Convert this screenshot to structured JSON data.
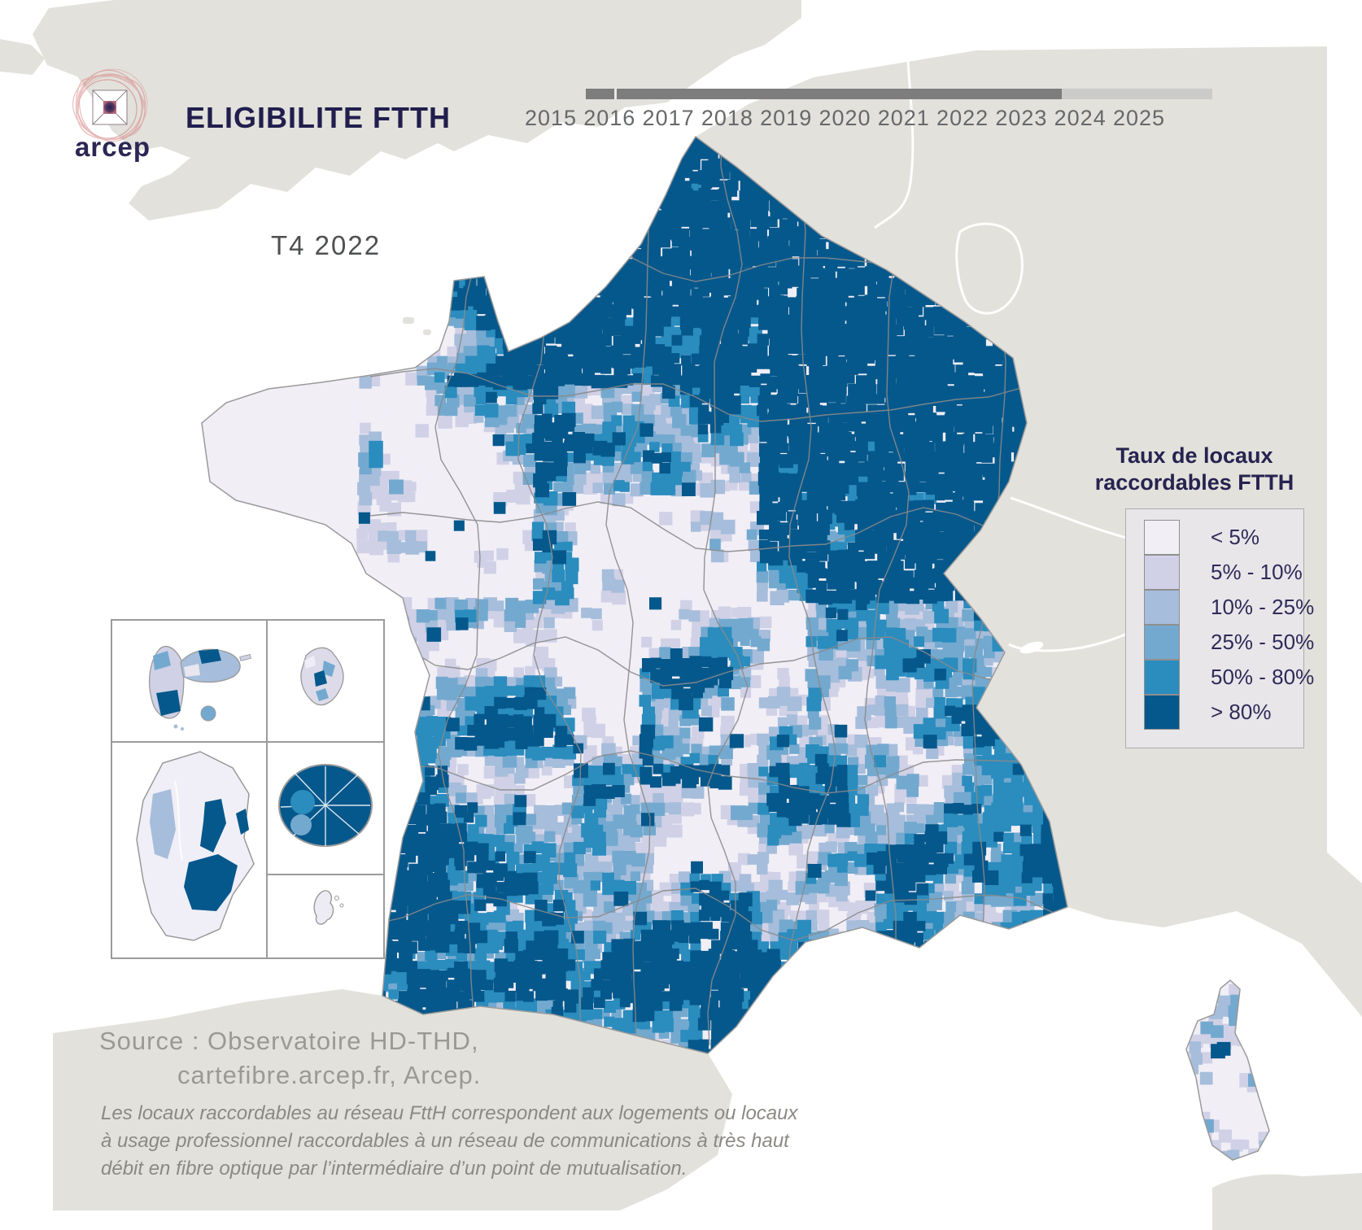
{
  "header": {
    "logo_text": "arcep",
    "title": "ELIGIBILITE FTTH"
  },
  "timeline": {
    "years": [
      "2015",
      "2016",
      "2017",
      "2018",
      "2019",
      "2020",
      "2021",
      "2022",
      "2023",
      "2024",
      "2025"
    ],
    "period_label": "T4 2022",
    "progress_fraction": 0.76
  },
  "legend": {
    "title_line1": "Taux de locaux",
    "title_line2": "raccordables FTTH",
    "items": [
      {
        "label": "< 5%",
        "color": "#f1eef6"
      },
      {
        "label": "5% - 10%",
        "color": "#d0d1e6"
      },
      {
        "label": "10% - 25%",
        "color": "#a6bddb"
      },
      {
        "label": "25% - 50%",
        "color": "#74a9cf"
      },
      {
        "label": "50% - 80%",
        "color": "#2b8cbe"
      },
      {
        "label": "> 80%",
        "color": "#05588c"
      }
    ]
  },
  "map": {
    "sea_color": "#ffffff",
    "land_color": "#e2e1db",
    "region_border_color": "#8a8a8a",
    "coast_color": "#9a9a9a",
    "palette": [
      "#f1eef6",
      "#d0d1e6",
      "#a6bddb",
      "#74a9cf",
      "#2b8cbe",
      "#05588c"
    ]
  },
  "source": {
    "line1": "Source : Observatoire HD-THD,",
    "line2": "cartefibre.arcep.fr, Arcep."
  },
  "footnote": {
    "line1": "Les locaux raccordables au réseau FttH correspondent aux logements ou locaux",
    "line2": "à usage professionnel raccordables à un réseau de communications à très haut",
    "line3": "débit en fibre optique par l’intermédiaire d’un point de mutualisation."
  }
}
